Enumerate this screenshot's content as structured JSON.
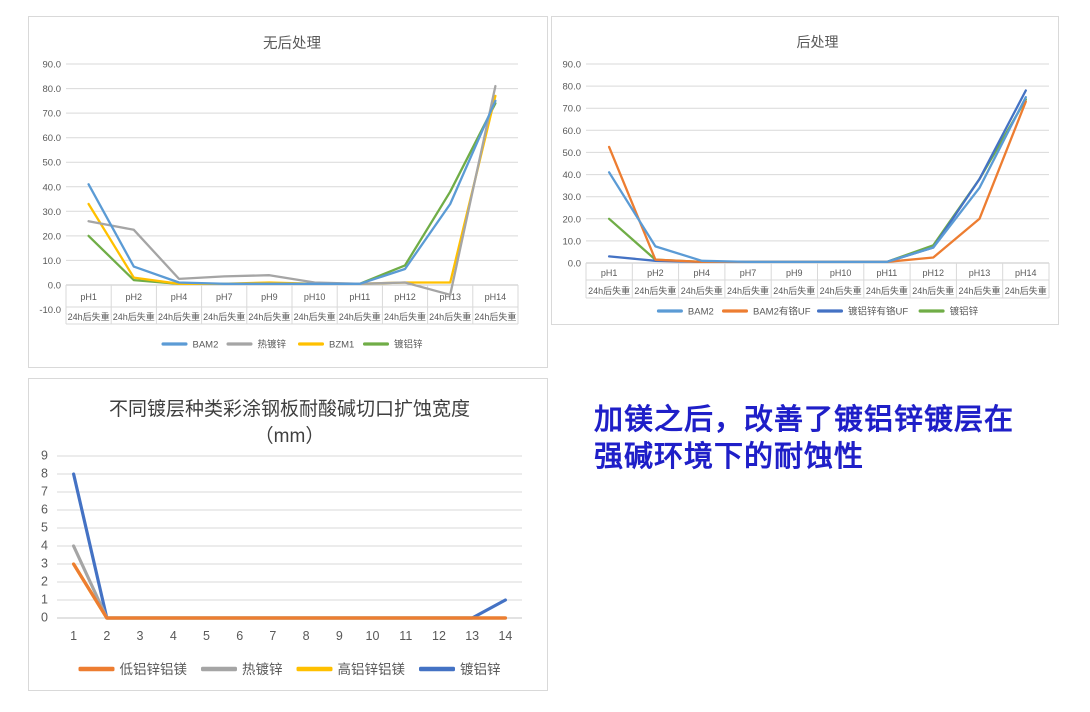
{
  "page": {
    "background": "#ffffff"
  },
  "note": {
    "lines": [
      "加镁之后，改善了镀铝锌镀层在",
      "强碱环境下的耐蚀性"
    ],
    "color": "#1f1fc8"
  },
  "chart_data": [
    {
      "type": "line",
      "title": "无后处理",
      "categories": [
        "pH1",
        "pH2",
        "pH4",
        "pH7",
        "pH9",
        "pH10",
        "pH11",
        "pH12",
        "pH13",
        "pH14"
      ],
      "category_sublabel": "24h后失重",
      "ylim": [
        -10,
        90
      ],
      "ytick_step": 10,
      "ytick_decimals": 1,
      "grid": true,
      "legend_position": "bottom",
      "grid_color": "#d9d9d9",
      "text_color": "#595959",
      "series": [
        {
          "name": "BAM2",
          "color": "#5B9BD5",
          "values": [
            41,
            7.5,
            1,
            0.5,
            0.5,
            0.5,
            0.5,
            6.5,
            33,
            75
          ]
        },
        {
          "name": "热镀锌",
          "color": "#A5A5A5",
          "values": [
            26,
            22.5,
            2.5,
            3.5,
            4,
            1,
            0.5,
            1,
            -4,
            81
          ]
        },
        {
          "name": "BZM1",
          "color": "#FFC000",
          "values": [
            33,
            3,
            0.5,
            0.5,
            1,
            0.5,
            0.5,
            1,
            1,
            77
          ]
        },
        {
          "name": "镀铝锌",
          "color": "#70AD47",
          "values": [
            20,
            2,
            0.5,
            0.5,
            0.5,
            0.5,
            0.5,
            8,
            38,
            74
          ]
        }
      ]
    },
    {
      "type": "line",
      "title": "后处理",
      "categories": [
        "pH1",
        "pH2",
        "pH4",
        "pH7",
        "pH9",
        "pH10",
        "pH11",
        "pH12",
        "pH13",
        "pH14"
      ],
      "category_sublabel": "24h后失重",
      "ylim": [
        0,
        90
      ],
      "ytick_step": 10,
      "ytick_decimals": 1,
      "grid": true,
      "legend_position": "bottom",
      "grid_color": "#d9d9d9",
      "text_color": "#595959",
      "series": [
        {
          "name": "BAM2",
          "color": "#5B9BD5",
          "values": [
            41,
            7.5,
            1,
            0.5,
            0.5,
            0.5,
            0.5,
            7,
            34,
            75
          ]
        },
        {
          "name": "BAM2有铬UF",
          "color": "#ED7D31",
          "values": [
            52.5,
            1.5,
            0.5,
            0.5,
            0.5,
            0.5,
            0.5,
            2.5,
            20,
            73
          ]
        },
        {
          "name": "镀铝锌有铬UF",
          "color": "#4472C4",
          "values": [
            3,
            1,
            0.5,
            0.5,
            0.5,
            0.5,
            0.5,
            7,
            38,
            78
          ]
        },
        {
          "name": "镀铝锌",
          "color": "#70AD47",
          "values": [
            20,
            1.5,
            0.5,
            0.5,
            0.5,
            0.5,
            0.5,
            8,
            38,
            74
          ]
        }
      ]
    },
    {
      "type": "line",
      "title": "不同镀层种类彩涂钢板耐酸碱切口扩蚀宽度",
      "title_line2": "（mm）",
      "categories": [
        "1",
        "2",
        "3",
        "4",
        "5",
        "6",
        "7",
        "8",
        "9",
        "10",
        "11",
        "12",
        "13",
        "14"
      ],
      "ylim": [
        0,
        9
      ],
      "ytick_step": 1,
      "ytick_decimals": 0,
      "grid": true,
      "legend_position": "bottom",
      "grid_color": "#d9d9d9",
      "text_color": "#595959",
      "series": [
        {
          "name": "低铝锌铝镁",
          "color": "#ED7D31",
          "values": [
            3,
            0,
            0,
            0,
            0,
            0,
            0,
            0,
            0,
            0,
            0,
            0,
            0,
            0
          ]
        },
        {
          "name": "热镀锌",
          "color": "#A5A5A5",
          "values": [
            4,
            0,
            0,
            0,
            0,
            0,
            0,
            0,
            0,
            0,
            0,
            0,
            0,
            0
          ]
        },
        {
          "name": "高铝锌铝镁",
          "color": "#FFC000",
          "values": [
            3,
            0,
            0,
            0,
            0,
            0,
            0,
            0,
            0,
            0,
            0,
            0,
            0,
            0
          ]
        },
        {
          "name": "镀铝锌",
          "color": "#4472C4",
          "values": [
            8,
            0,
            0,
            0,
            0,
            0,
            0,
            0,
            0,
            0,
            0,
            0,
            0,
            1
          ]
        }
      ]
    }
  ]
}
